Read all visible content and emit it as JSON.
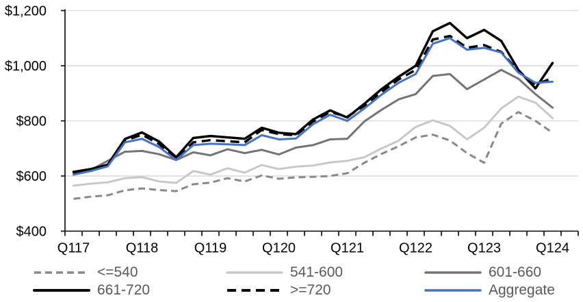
{
  "chart_data": {
    "type": "line",
    "title": "",
    "x": [
      "2017Q1",
      "2017Q2",
      "2017Q3",
      "2017Q4",
      "2018Q1",
      "2018Q2",
      "2018Q3",
      "2018Q4",
      "2019Q1",
      "2019Q2",
      "2019Q3",
      "2019Q4",
      "2020Q1",
      "2020Q2",
      "2020Q3",
      "2020Q4",
      "2021Q1",
      "2021Q2",
      "2021Q3",
      "2021Q4",
      "2022Q1",
      "2022Q2",
      "2022Q3",
      "2022Q4",
      "2023Q1",
      "2023Q2",
      "2023Q3",
      "2023Q4",
      "2024Q1"
    ],
    "x_axis_tick_labels": [
      "Q117",
      "Q118",
      "Q119",
      "Q120",
      "Q121",
      "Q122",
      "Q123",
      "Q124"
    ],
    "y_axis_tick_labels": [
      "$400",
      "$600",
      "$800",
      "$1,000",
      "$1,200"
    ],
    "y_tick_values": [
      400,
      600,
      800,
      1000,
      1200
    ],
    "ylim": [
      400,
      1200
    ],
    "grid": "horizontal",
    "legend_position": "bottom",
    "series": [
      {
        "name": "<=540",
        "color": "#898989",
        "dash": "10 6",
        "width": 3,
        "values": [
          517,
          525,
          530,
          548,
          555,
          549,
          545,
          570,
          576,
          592,
          580,
          602,
          590,
          595,
          597,
          600,
          610,
          648,
          680,
          708,
          740,
          750,
          729,
          683,
          648,
          790,
          832,
          800,
          757
        ]
      },
      {
        "name": "541-600",
        "color": "#C8C8C8",
        "dash": null,
        "width": 3,
        "values": [
          565,
          572,
          577,
          592,
          596,
          580,
          575,
          618,
          605,
          628,
          612,
          640,
          625,
          634,
          638,
          649,
          655,
          668,
          700,
          728,
          778,
          802,
          782,
          733,
          775,
          845,
          888,
          866,
          810
        ]
      },
      {
        "name": "601-660",
        "color": "#747474",
        "dash": null,
        "width": 3,
        "values": [
          610,
          622,
          655,
          688,
          691,
          679,
          658,
          686,
          675,
          697,
          683,
          695,
          678,
          703,
          712,
          733,
          735,
          798,
          840,
          878,
          897,
          963,
          970,
          915,
          950,
          985,
          953,
          897,
          848
        ]
      },
      {
        "name": "661-720",
        "color": "#000000",
        "dash": null,
        "width": 3.5,
        "values": [
          615,
          625,
          641,
          734,
          758,
          725,
          668,
          738,
          745,
          740,
          735,
          775,
          757,
          752,
          805,
          838,
          812,
          862,
          915,
          960,
          1000,
          1125,
          1155,
          1100,
          1130,
          1090,
          985,
          918,
          1010
        ]
      },
      {
        "name": ">=720",
        "color": "#000000",
        "dash": "13 8",
        "width": 3.5,
        "values": [
          612,
          622,
          638,
          728,
          750,
          716,
          661,
          722,
          730,
          726,
          722,
          767,
          752,
          748,
          798,
          832,
          815,
          855,
          905,
          950,
          985,
          1095,
          1108,
          1065,
          1075,
          1050,
          980,
          932,
          955
        ]
      },
      {
        "name": "Aggregate",
        "color": "#4472C4",
        "dash": null,
        "width": 3,
        "values": [
          605,
          618,
          635,
          722,
          735,
          705,
          658,
          712,
          717,
          715,
          712,
          748,
          733,
          736,
          788,
          822,
          800,
          845,
          895,
          938,
          970,
          1080,
          1100,
          1058,
          1065,
          1048,
          975,
          938,
          942
        ]
      }
    ]
  },
  "colors": {
    "gridline": "#D9D9D9",
    "axis": "#000000",
    "tick_label": "#000000",
    "legend_text": "#595959",
    "background": "#FFFFFF"
  }
}
